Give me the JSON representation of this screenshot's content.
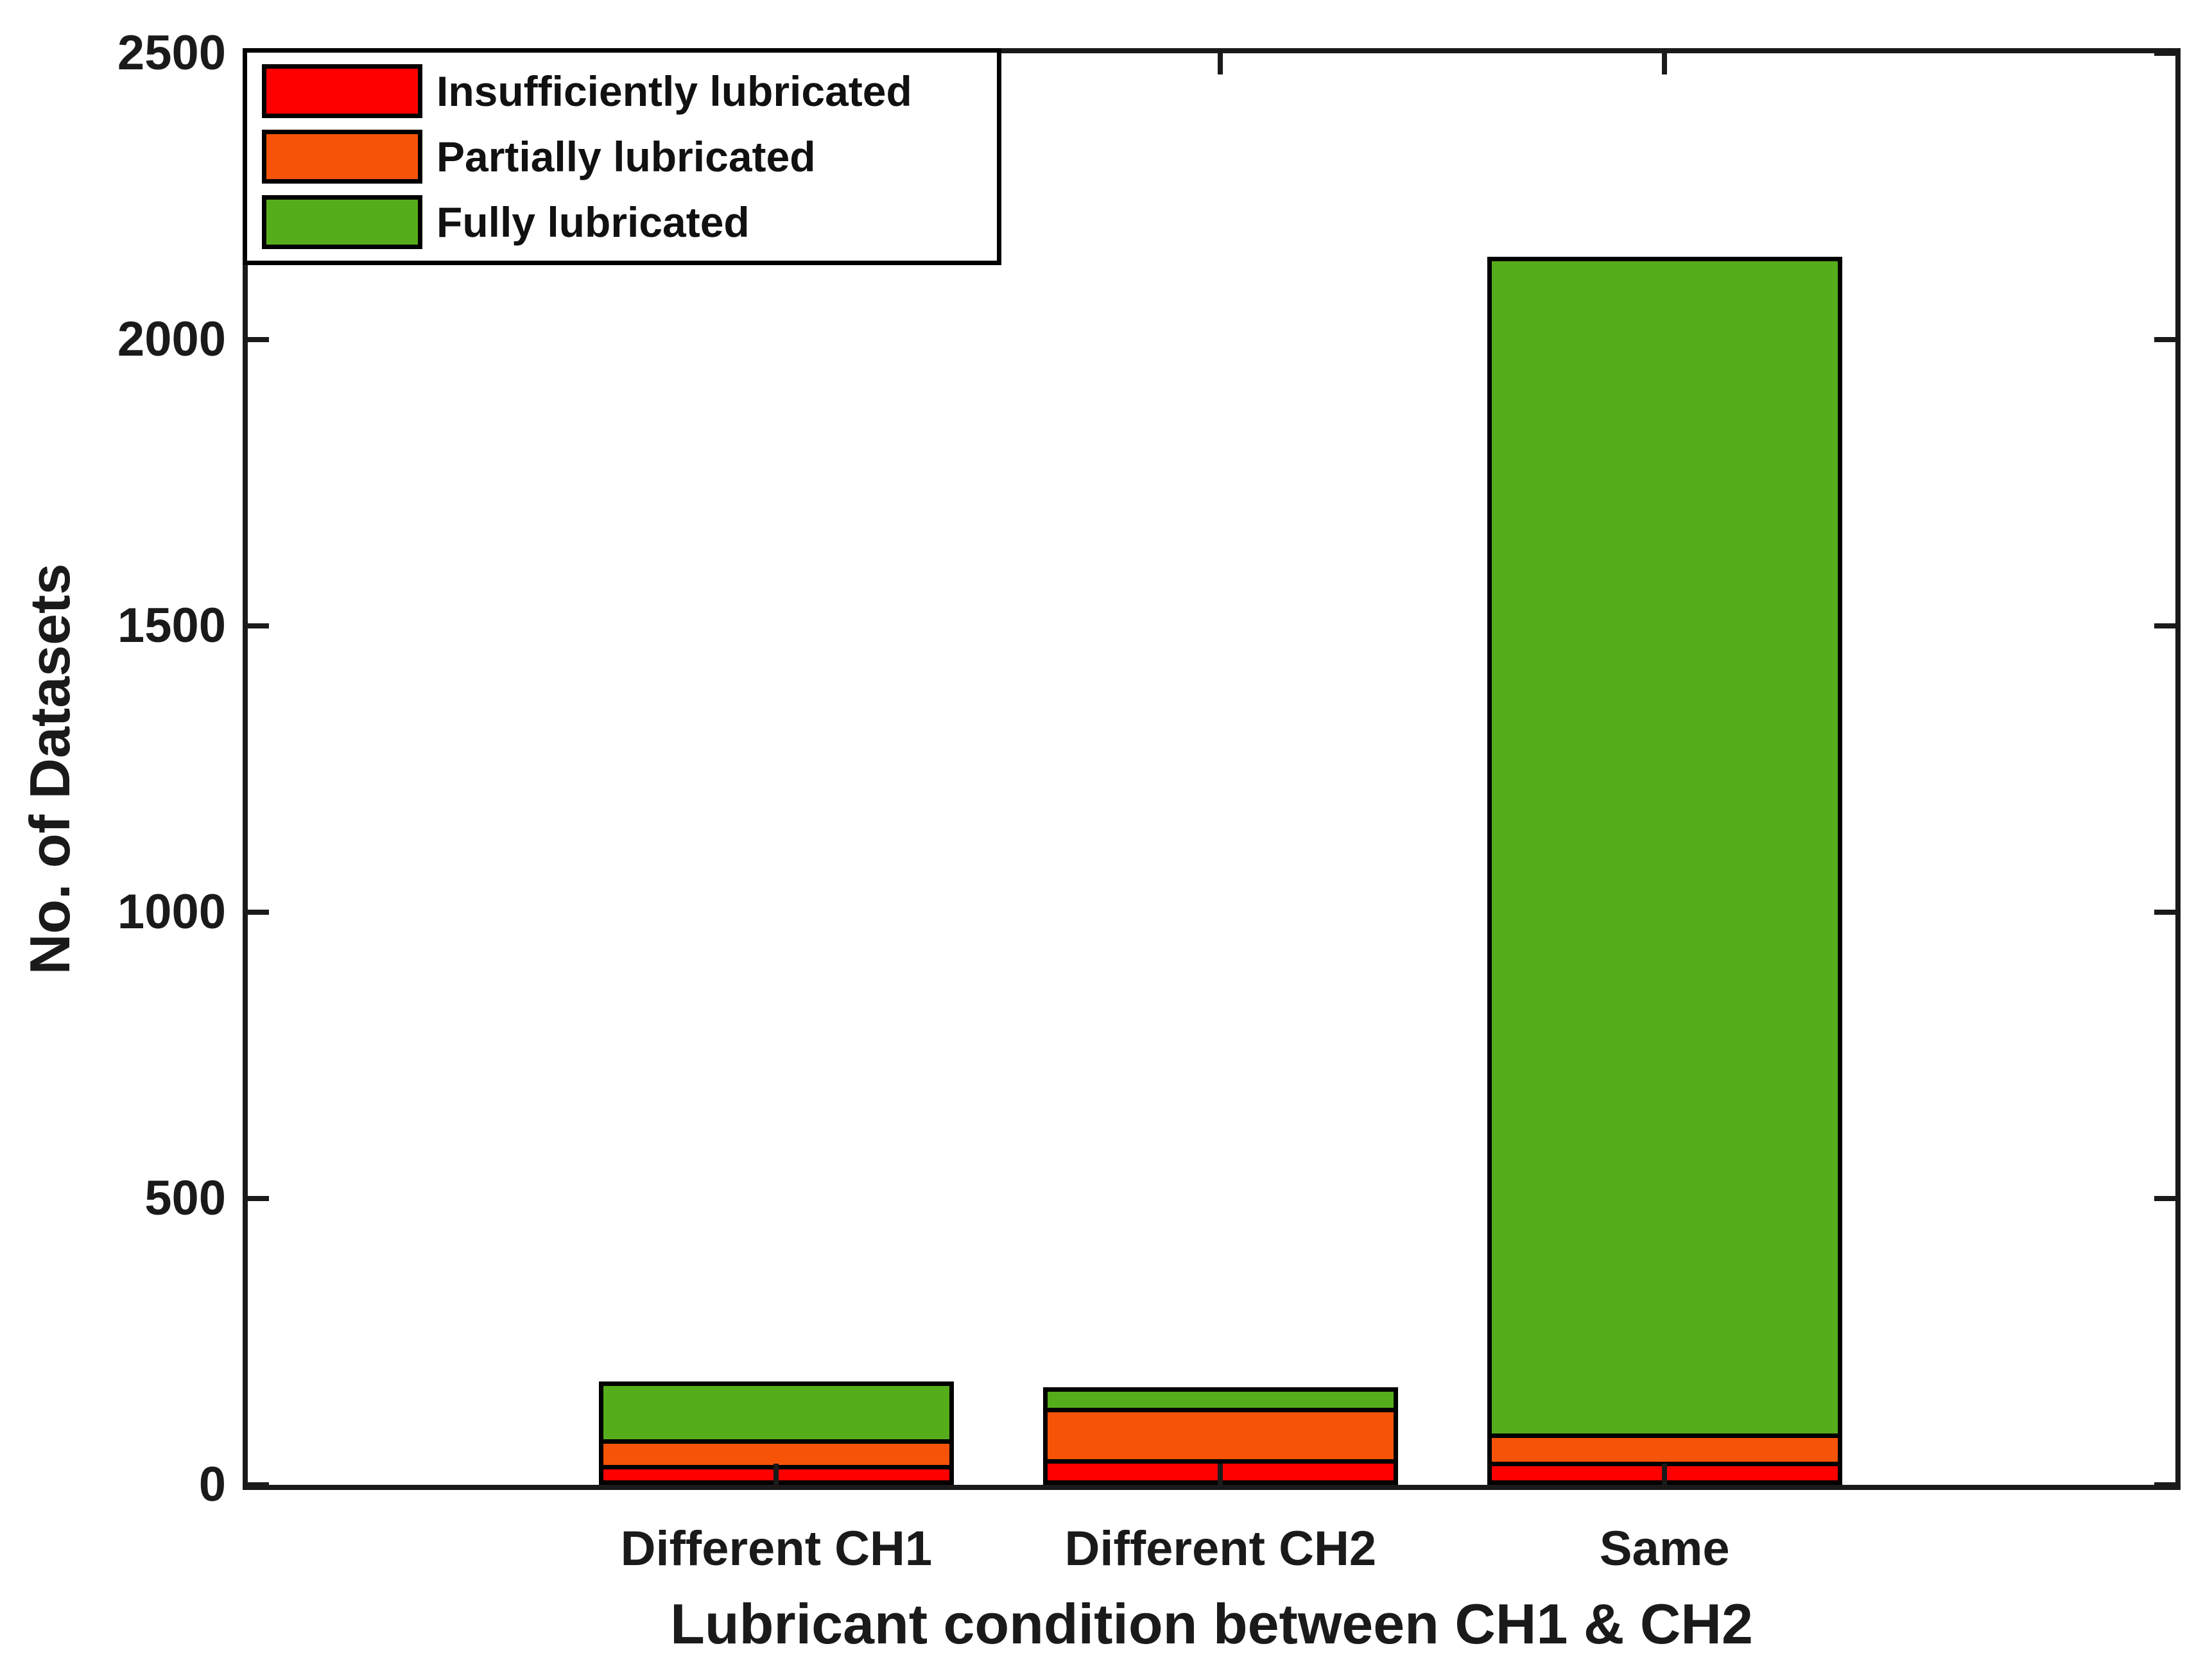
{
  "figure": {
    "background": "#FFFFFF",
    "axis_color": "#1A1A1A",
    "text_color": "#1A1A1A",
    "bar_edge_color": "#000000"
  },
  "chart_data": {
    "type": "bar",
    "stacked": true,
    "title": "",
    "xlabel": "Lubricant condition between CH1 & CH2",
    "ylabel": "No. of Datasets",
    "categories": [
      "Different CH1",
      "Different CH2",
      "Same"
    ],
    "series": [
      {
        "name": "Insufficiently lubricated",
        "color": "#FF0000",
        "values": [
          35,
          45,
          40
        ]
      },
      {
        "name": "Partially lubricated",
        "color": "#F65308",
        "values": [
          45,
          90,
          50
        ]
      },
      {
        "name": "Fully lubricated",
        "color": "#56AD1B",
        "values": [
          100,
          35,
          2055
        ]
      }
    ],
    "totals": [
      180,
      170,
      2145
    ],
    "ylim": [
      0,
      2500
    ],
    "yticks": [
      0,
      500,
      1000,
      1500,
      2000,
      2500
    ],
    "grid": false,
    "legend_position": "top-left"
  }
}
